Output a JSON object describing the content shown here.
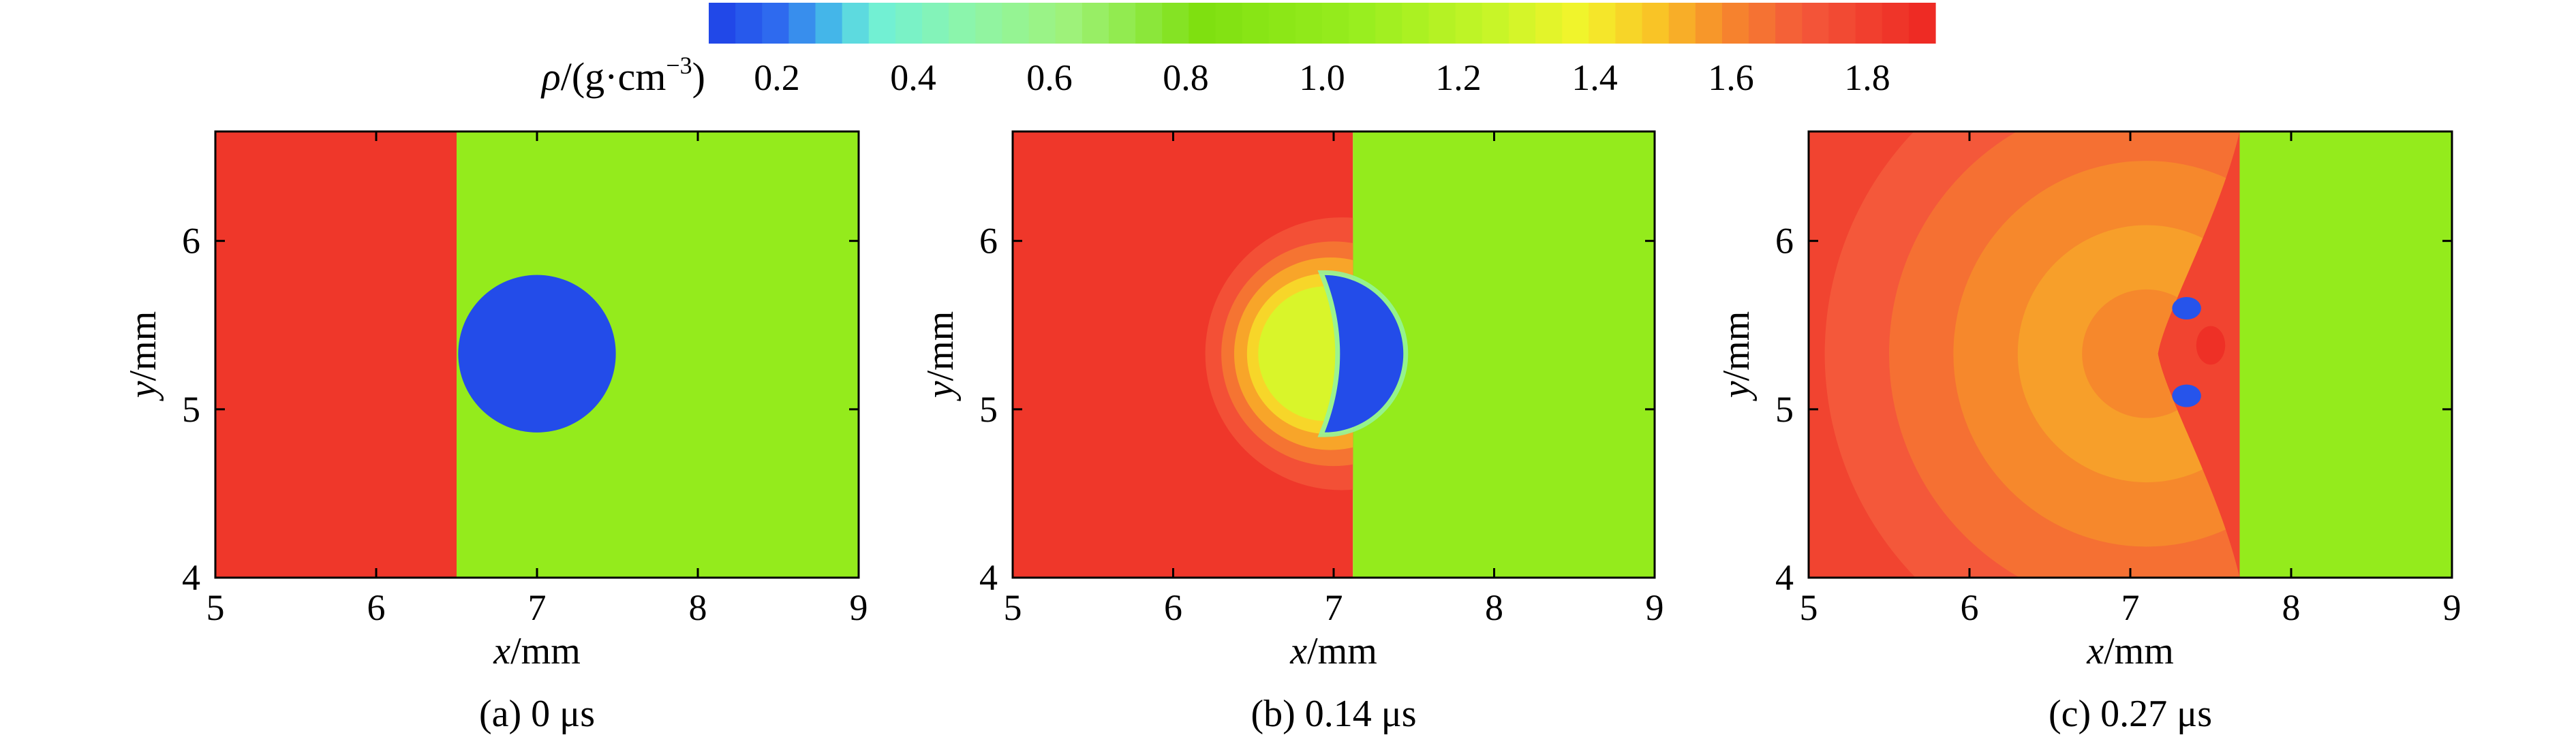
{
  "colorbar": {
    "label_symbol": "ρ",
    "label_unit": "/(g·cm",
    "label_exponent": "−3",
    "label_close": ")",
    "ticks": [
      0.2,
      0.4,
      0.6,
      0.8,
      1.0,
      1.2,
      1.4,
      1.6,
      1.8
    ],
    "tick_labels": [
      "0.2",
      "0.4",
      "0.6",
      "0.8",
      "1.0",
      "1.2",
      "1.4",
      "1.6",
      "1.8"
    ],
    "range": [
      0.05,
      1.92
    ],
    "stops": [
      {
        "value": 0.05,
        "color": "#1e3fe6"
      },
      {
        "value": 0.16,
        "color": "#2f6ef0"
      },
      {
        "value": 0.24,
        "color": "#46bde8"
      },
      {
        "value": 0.3,
        "color": "#6ff0d8"
      },
      {
        "value": 0.45,
        "color": "#8ef5a8"
      },
      {
        "value": 0.6,
        "color": "#9ef27a"
      },
      {
        "value": 0.8,
        "color": "#7fe010"
      },
      {
        "value": 1.05,
        "color": "#99ee1f"
      },
      {
        "value": 1.25,
        "color": "#c8f528"
      },
      {
        "value": 1.38,
        "color": "#f3f42c"
      },
      {
        "value": 1.5,
        "color": "#f9c126"
      },
      {
        "value": 1.6,
        "color": "#f6882c"
      },
      {
        "value": 1.72,
        "color": "#f4583a"
      },
      {
        "value": 1.92,
        "color": "#ed2621"
      }
    ]
  },
  "chart_data": [
    {
      "type": "heatmap",
      "caption": "(a) 0 μs",
      "xlabel_var": "x",
      "xlabel_unit": "/mm",
      "ylabel_var": "y",
      "ylabel_unit": "/mm",
      "xlim": [
        5,
        9
      ],
      "ylim": [
        4,
        6.65
      ],
      "xticks": [
        5,
        6,
        7,
        8,
        9
      ],
      "yticks": [
        4,
        5,
        6
      ],
      "xtick_labels": [
        "5",
        "6",
        "7",
        "8",
        "9"
      ],
      "ytick_labels": [
        "4",
        "5",
        "6"
      ],
      "regions": [
        {
          "name": "shocked-region",
          "shape": "rect",
          "x": [
            5,
            6.5
          ],
          "y": [
            4,
            6.65
          ],
          "density": 1.85
        },
        {
          "name": "ambient-region",
          "shape": "rect",
          "x": [
            6.5,
            9
          ],
          "y": [
            4,
            6.65
          ],
          "density": 1.0
        },
        {
          "name": "bubble",
          "shape": "circle",
          "cx": 7.0,
          "cy": 5.33,
          "r": 0.49,
          "density": 0.08
        }
      ]
    },
    {
      "type": "heatmap",
      "caption": "(b) 0.14 μs",
      "xlabel_var": "x",
      "xlabel_unit": "/mm",
      "ylabel_var": "y",
      "ylabel_unit": "/mm",
      "xlim": [
        5,
        9
      ],
      "ylim": [
        4,
        6.65
      ],
      "xticks": [
        5,
        6,
        7,
        8,
        9
      ],
      "yticks": [
        4,
        5,
        6
      ],
      "xtick_labels": [
        "5",
        "6",
        "7",
        "8",
        "9"
      ],
      "ytick_labels": [
        "4",
        "5",
        "6"
      ],
      "shock_x": 7.12,
      "regions": [
        {
          "name": "shocked-region",
          "shape": "rect",
          "x": [
            5,
            7.12
          ],
          "y": [
            4,
            6.65
          ],
          "density": 1.85
        },
        {
          "name": "ambient-region",
          "shape": "rect",
          "x": [
            7.12,
            9
          ],
          "y": [
            4,
            6.65
          ],
          "density": 1.0
        },
        {
          "name": "rarefaction-ring",
          "shape": "ring",
          "cx": 7.05,
          "cy": 5.33,
          "r_outer": 0.85,
          "density": 1.75
        },
        {
          "name": "rarefaction-ring",
          "shape": "ring",
          "cx": 7.0,
          "cy": 5.33,
          "r_outer": 0.7,
          "density": 1.65
        },
        {
          "name": "rarefaction-ring",
          "shape": "ring",
          "cx": 6.98,
          "cy": 5.33,
          "r_outer": 0.6,
          "density": 1.55
        },
        {
          "name": "rarefaction-ring",
          "shape": "ring",
          "cx": 6.96,
          "cy": 5.33,
          "r_outer": 0.5,
          "density": 1.45
        },
        {
          "name": "rarefaction-ring",
          "shape": "ring",
          "cx": 6.95,
          "cy": 5.33,
          "r_outer": 0.42,
          "density": 1.3
        },
        {
          "name": "bubble",
          "shape": "kidney",
          "cx": 7.22,
          "cy": 5.33,
          "r": 0.49,
          "density": 0.08
        }
      ]
    },
    {
      "type": "heatmap",
      "caption": "(c) 0.27 μs",
      "xlabel_var": "x",
      "xlabel_unit": "/mm",
      "ylabel_var": "y",
      "ylabel_unit": "/mm",
      "xlim": [
        5,
        9
      ],
      "ylim": [
        4,
        6.65
      ],
      "xticks": [
        5,
        6,
        7,
        8,
        9
      ],
      "yticks": [
        4,
        5,
        6
      ],
      "xtick_labels": [
        "5",
        "6",
        "7",
        "8",
        "9"
      ],
      "ytick_labels": [
        "4",
        "5",
        "6"
      ],
      "shock_x": 7.68,
      "regions": [
        {
          "name": "shocked-region",
          "shape": "rect",
          "x": [
            5,
            7.68
          ],
          "y": [
            4,
            6.65
          ],
          "density": 1.8
        },
        {
          "name": "ambient-region",
          "shape": "rect",
          "x": [
            7.68,
            9
          ],
          "y": [
            4,
            6.65
          ],
          "density": 1.0
        },
        {
          "name": "pressure-ring",
          "shape": "ring",
          "cx": 7.1,
          "cy": 5.33,
          "r_outer": 2.0,
          "density": 1.72
        },
        {
          "name": "pressure-ring",
          "shape": "ring",
          "cx": 7.1,
          "cy": 5.33,
          "r_outer": 1.6,
          "density": 1.66
        },
        {
          "name": "pressure-ring",
          "shape": "ring",
          "cx": 7.1,
          "cy": 5.33,
          "r_outer": 1.2,
          "density": 1.6
        },
        {
          "name": "pressure-ring",
          "shape": "ring",
          "cx": 7.1,
          "cy": 5.33,
          "r_outer": 0.8,
          "density": 1.56
        },
        {
          "name": "pressure-ring",
          "shape": "ring",
          "cx": 7.1,
          "cy": 5.33,
          "r_outer": 0.4,
          "density": 1.6
        },
        {
          "name": "jet-core",
          "shape": "ellipse",
          "cx": 7.5,
          "cy": 5.38,
          "rx": 0.09,
          "ry": 0.12,
          "density": 1.88
        },
        {
          "name": "vortex",
          "shape": "ellipse",
          "cx": 7.35,
          "cy": 5.6,
          "rx": 0.09,
          "ry": 0.07,
          "density": 0.1
        },
        {
          "name": "vortex",
          "shape": "ellipse",
          "cx": 7.35,
          "cy": 5.08,
          "rx": 0.09,
          "ry": 0.07,
          "density": 0.1
        }
      ]
    }
  ]
}
